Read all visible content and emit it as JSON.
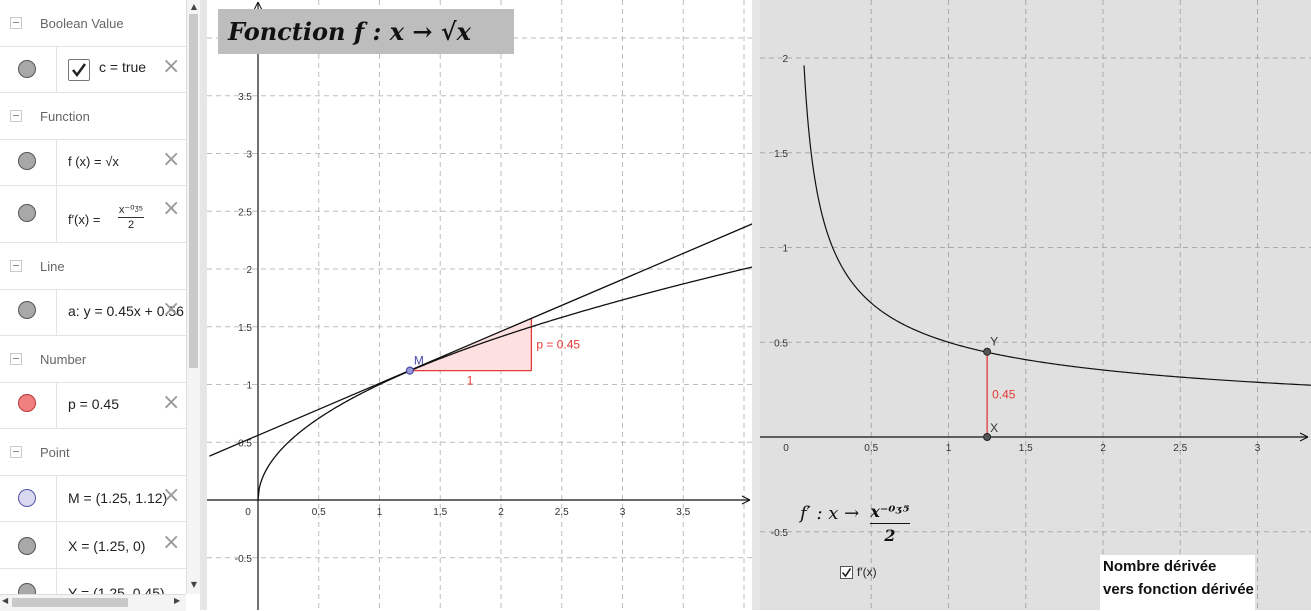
{
  "algebra": {
    "groups": [
      {
        "label": "Boolean Value"
      },
      {
        "label": "Function"
      },
      {
        "label": "Line"
      },
      {
        "label": "Number"
      },
      {
        "label": "Point"
      }
    ],
    "items": {
      "bool_c": {
        "text": "c = true",
        "checked": true
      },
      "func_f": {
        "text": "f (x) = √x"
      },
      "func_fp": {
        "lhs": "f′(x) =",
        "num": "x⁻⁰ᶾ⁵",
        "den": "2"
      },
      "line_a": {
        "text": "a: y = 0.45x + 0.56"
      },
      "num_p": {
        "text": "p = 0.45",
        "color": "#f08080"
      },
      "pt_M": {
        "text": "M = (1.25, 1.12)"
      },
      "pt_X": {
        "text": "X = (1.25, 0)"
      },
      "pt_Y": {
        "text": "Y = (1.25, 0.45)"
      }
    }
  },
  "graphics1": {
    "title": "Fonction f : x → √x",
    "x_ticks": [
      "0",
      "0.5",
      "1",
      "1.5",
      "2",
      "2.5",
      "3",
      "3.5"
    ],
    "y_ticks": [
      "3.5",
      "3",
      "2.5",
      "2",
      "1.5",
      "1",
      "0.5",
      "-0.5"
    ],
    "point_label": "M",
    "slope_run_label": "1",
    "slope_rise_label": "p = 0.45",
    "colors": {
      "slope": "#e53935",
      "fill": "#fde1e1",
      "point": "#4a4aa8"
    }
  },
  "graphics2": {
    "x_ticks": [
      "0",
      "0.5",
      "1",
      "1.5",
      "2",
      "2.5",
      "3"
    ],
    "y_ticks": [
      "2",
      "1.5",
      "1",
      "0.5",
      "-0.5"
    ],
    "point_Y": "Y",
    "point_X": "X",
    "segment_label": "0.45",
    "formula_lhs": "f′ : x →",
    "formula_num": "x⁻⁰ᶾ⁵",
    "formula_den": "2",
    "checkbox_label": "f′(x)",
    "checkbox_checked": true,
    "note_line1": "Nombre dérivée",
    "note_line2": "vers fonction dérivée"
  },
  "chart_data": [
    {
      "type": "line",
      "title": "Fonction f : x → √x",
      "xlim": [
        -0.4,
        4.15
      ],
      "ylim": [
        -0.9,
        4.35
      ],
      "series": [
        {
          "name": "f",
          "formula": "sqrt(x)"
        },
        {
          "name": "a",
          "formula": "0.45x + 0.56"
        }
      ],
      "points": [
        {
          "name": "M",
          "x": 1.25,
          "y": 1.12
        }
      ],
      "slope_triangle": {
        "x0": 1.25,
        "y0": 1.12,
        "run": 1,
        "rise": 0.45
      }
    },
    {
      "type": "line",
      "xlim": [
        -0.15,
        3.4
      ],
      "ylim": [
        -0.9,
        2.3
      ],
      "series": [
        {
          "name": "f′",
          "formula": "x^-0.5 / 2"
        }
      ],
      "points": [
        {
          "name": "Y",
          "x": 1.25,
          "y": 0.45
        },
        {
          "name": "X",
          "x": 1.25,
          "y": 0
        }
      ]
    }
  ]
}
